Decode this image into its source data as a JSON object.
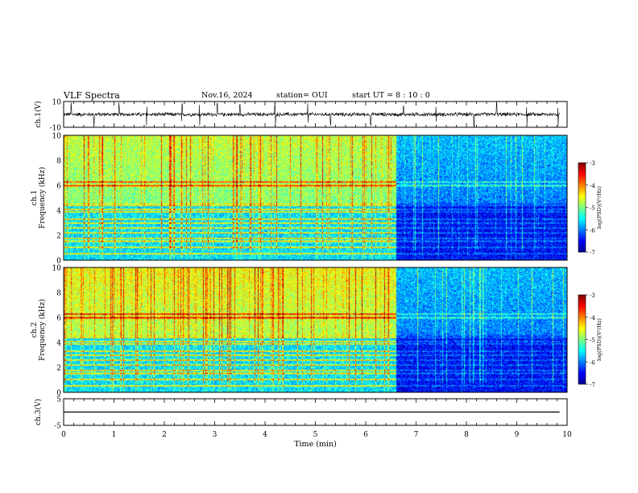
{
  "header": {
    "title": "VLF Spectra",
    "date": "Nov.16, 2024",
    "station": "station= OUI",
    "start_ut": "start  UT =   8 : 10 : 0"
  },
  "chart_data": [
    {
      "type": "line",
      "name": "ch1-waveform",
      "ylabel": "ch.1(V)",
      "ylim": [
        -10,
        10
      ],
      "yticks": [
        "10",
        "-10"
      ],
      "xlim": [
        0,
        10
      ],
      "baseline": 0,
      "noise_amplitude": 1.2,
      "spike_times": [
        0.15,
        0.6,
        1.1,
        1.65,
        2.35,
        2.7,
        3.05,
        3.5,
        4.2,
        4.85,
        5.3,
        6.1,
        6.75,
        7.4,
        8.15,
        8.6,
        9.2,
        9.82
      ]
    },
    {
      "type": "heatmap",
      "name": "ch1-spectrogram",
      "ylabel": "ch.1\nFrequency (kHz)",
      "ylim": [
        0,
        10
      ],
      "yticks": [
        "0",
        "2",
        "4",
        "6",
        "8",
        "10"
      ],
      "xlim": [
        0,
        10
      ],
      "colorbar": {
        "label": "log(PSD)(V²/Hz)",
        "range": [
          -7,
          -3
        ],
        "ticks": [
          "-3",
          "-4",
          "-5",
          "-6",
          "-7"
        ]
      },
      "band_edge_khz": 4.6,
      "transition_min": 6.6,
      "levels": {
        "upper_before": -5.0,
        "lower_before": -5.6,
        "upper_after": -6.0,
        "lower_after": -6.5
      },
      "lines_khz": [
        0.55,
        1.05,
        1.55,
        1.8,
        2.2,
        2.6,
        3.0,
        3.3,
        3.9,
        4.1,
        4.4,
        4.55,
        6.0,
        6.3
      ]
    },
    {
      "type": "heatmap",
      "name": "ch2-spectrogram",
      "ylabel": "ch.2\nFrequency (kHz)",
      "ylim": [
        0,
        10
      ],
      "yticks": [
        "0",
        "2",
        "4",
        "6",
        "8",
        "10"
      ],
      "xlim": [
        0,
        10
      ],
      "colorbar": {
        "label": "log(PSD)(V²/Hz)",
        "range": [
          -7,
          -3
        ],
        "ticks": [
          "-3",
          "-4",
          "-5",
          "-6",
          "-7"
        ]
      },
      "band_edge_khz": 4.6,
      "transition_min": 6.6,
      "levels": {
        "upper_before": -4.8,
        "lower_before": -5.6,
        "upper_after": -6.0,
        "lower_after": -6.5
      },
      "lines_khz": [
        0.55,
        1.05,
        1.55,
        1.8,
        2.2,
        2.6,
        3.0,
        3.3,
        3.9,
        4.1,
        4.4,
        4.55,
        6.0,
        6.3
      ]
    },
    {
      "type": "line",
      "name": "ch3-waveform",
      "ylabel": "ch.3(V)",
      "ylim": [
        -5,
        5
      ],
      "yticks": [
        "5",
        "-5"
      ],
      "xlim": [
        0,
        10
      ],
      "baseline": 0
    }
  ],
  "xaxis": {
    "label": "Time (min)",
    "ticks": [
      "0",
      "1",
      "2",
      "3",
      "4",
      "5",
      "6",
      "7",
      "8",
      "9",
      "10"
    ]
  },
  "colors": {
    "jet": [
      "#00008f",
      "#0000ff",
      "#0080ff",
      "#00ffff",
      "#80ff80",
      "#ffff00",
      "#ff8000",
      "#ff0000",
      "#800000"
    ]
  }
}
